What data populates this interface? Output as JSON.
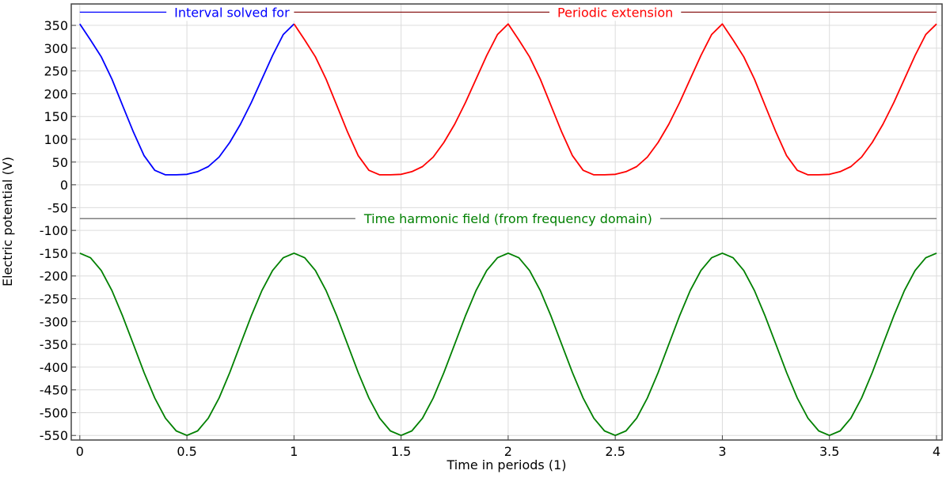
{
  "chart_data": {
    "type": "line",
    "title": "",
    "xlabel": "Time in periods (1)",
    "ylabel": "Electric potential (V)",
    "xlim": [
      -0.04,
      4.026
    ],
    "ylim": [
      -560,
      397
    ],
    "grid": true,
    "x_ticks": [
      0,
      0.5,
      1,
      1.5,
      2,
      2.5,
      3,
      3.5,
      4
    ],
    "x_tick_labels": [
      "0",
      "0.5",
      "1",
      "1.5",
      "2",
      "2.5",
      "3",
      "3.5",
      "4"
    ],
    "y_ticks": [
      350,
      300,
      250,
      200,
      150,
      100,
      50,
      0,
      -50,
      -100,
      -150,
      -200,
      -250,
      -300,
      -350,
      -400,
      -450,
      -500,
      -550
    ],
    "y_tick_labels": [
      "350",
      "300",
      "250",
      "200",
      "150",
      "100",
      "50",
      "0",
      "-50",
      "-100",
      "-150",
      "-200",
      "-250",
      "-300",
      "-350",
      "-400",
      "-450",
      "-500",
      "-550"
    ],
    "period_x_step": 0.05,
    "series": [
      {
        "name": "Interval solved for",
        "color": "#0000ff",
        "x_range": [
          0,
          1
        ],
        "period_values": [
          353,
          318,
          281,
          232,
          174,
          116,
          64,
          32,
          22,
          22,
          23,
          29,
          40,
          61,
          93,
          133,
          180,
          232,
          284,
          330,
          353
        ]
      },
      {
        "name": "Periodic extension",
        "color": "#ff0000",
        "x_range": [
          1,
          4
        ],
        "period_values": [
          353,
          318,
          281,
          232,
          174,
          116,
          64,
          32,
          22,
          22,
          23,
          29,
          40,
          61,
          93,
          133,
          180,
          232,
          284,
          330,
          353
        ]
      },
      {
        "name": "Time harmonic field (from frequency domain)",
        "color": "#008000",
        "x_range": [
          0,
          4
        ],
        "period_values": [
          -150,
          -160,
          -188,
          -232,
          -288,
          -350,
          -412,
          -468,
          -512,
          -540,
          -550,
          -540,
          -512,
          -468,
          -412,
          -350,
          -288,
          -232,
          -188,
          -160,
          -150
        ]
      }
    ],
    "annotations": [
      {
        "text": "Interval solved for",
        "color": "#0000ff",
        "line_color": "#0000ff",
        "y": 379,
        "x_range": [
          0,
          1
        ],
        "label_x": 0.71
      },
      {
        "text": "Periodic extension",
        "color": "#ff0000",
        "line_color": "#8b1a1a",
        "y": 379,
        "x_range": [
          1,
          4
        ],
        "label_x": 2.5
      },
      {
        "text": "Time harmonic field (from frequency domain)",
        "color": "#008000",
        "line_color": "#555555",
        "y": -74,
        "x_range": [
          0,
          4
        ],
        "label_x": 2.0
      }
    ]
  }
}
